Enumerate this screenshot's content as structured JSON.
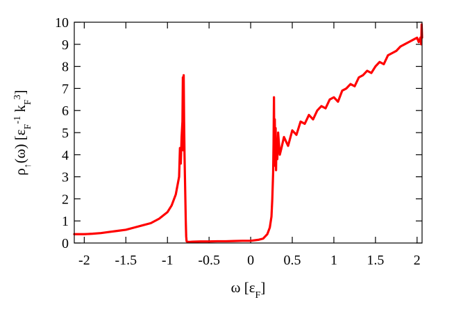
{
  "chart_data": {
    "type": "line",
    "xlabel": "ω [ε_F]",
    "ylabel": "ρ↑(ω) [ε_F^-1 k_F^3]",
    "xlim": [
      -2.12,
      2.06
    ],
    "ylim": [
      0,
      10
    ],
    "x_ticks": [
      -2,
      -1.5,
      -1,
      -0.5,
      0,
      0.5,
      1,
      1.5,
      2
    ],
    "x_tick_labels": [
      "-2",
      "-1.5",
      "-1",
      "-0.5",
      "0",
      "0.5",
      "1",
      "1.5",
      "2"
    ],
    "y_ticks": [
      0,
      1,
      2,
      3,
      4,
      5,
      6,
      7,
      8,
      9,
      10
    ],
    "y_tick_labels": [
      "0",
      "1",
      "2",
      "3",
      "4",
      "5",
      "6",
      "7",
      "8",
      "9",
      "10"
    ],
    "grid": false,
    "series": [
      {
        "color": "#ff0000",
        "x": [
          -2.12,
          -2.0,
          -1.9,
          -1.8,
          -1.7,
          -1.6,
          -1.5,
          -1.4,
          -1.3,
          -1.2,
          -1.1,
          -1.0,
          -0.95,
          -0.9,
          -0.88,
          -0.86,
          -0.85,
          -0.84,
          -0.83,
          -0.82,
          -0.815,
          -0.81,
          -0.805,
          -0.8,
          -0.795,
          -0.79,
          -0.785,
          -0.78,
          -0.775,
          -0.77,
          -0.76,
          -0.74,
          -0.7,
          -0.6,
          -0.5,
          -0.4,
          -0.3,
          -0.2,
          -0.1,
          0.0,
          0.1,
          0.15,
          0.2,
          0.23,
          0.25,
          0.26,
          0.27,
          0.275,
          0.28,
          0.285,
          0.29,
          0.295,
          0.3,
          0.305,
          0.31,
          0.32,
          0.33,
          0.35,
          0.37,
          0.4,
          0.45,
          0.5,
          0.55,
          0.6,
          0.65,
          0.7,
          0.75,
          0.8,
          0.85,
          0.9,
          0.95,
          1.0,
          1.05,
          1.1,
          1.15,
          1.2,
          1.25,
          1.3,
          1.35,
          1.4,
          1.45,
          1.5,
          1.55,
          1.6,
          1.65,
          1.7,
          1.75,
          1.8,
          1.85,
          1.9,
          1.95,
          2.0,
          2.02,
          2.04,
          2.05,
          2.055,
          2.06
        ],
        "y": [
          0.4,
          0.4,
          0.42,
          0.45,
          0.5,
          0.55,
          0.6,
          0.7,
          0.8,
          0.9,
          1.1,
          1.4,
          1.7,
          2.2,
          2.6,
          3.0,
          4.3,
          3.6,
          4.8,
          5.5,
          7.5,
          4.2,
          7.6,
          5.5,
          4.0,
          3.0,
          2.0,
          1.0,
          0.3,
          0.08,
          0.05,
          0.05,
          0.06,
          0.07,
          0.07,
          0.08,
          0.08,
          0.09,
          0.1,
          0.1,
          0.15,
          0.2,
          0.4,
          0.7,
          1.2,
          2.0,
          3.2,
          4.5,
          6.6,
          3.5,
          5.6,
          4.0,
          5.2,
          3.3,
          4.6,
          3.8,
          5.0,
          4.0,
          4.3,
          4.8,
          4.4,
          5.1,
          4.9,
          5.5,
          5.4,
          5.8,
          5.6,
          6.0,
          6.2,
          6.1,
          6.5,
          6.6,
          6.4,
          6.9,
          7.0,
          7.2,
          7.1,
          7.5,
          7.6,
          7.8,
          7.7,
          8.0,
          8.2,
          8.1,
          8.5,
          8.6,
          8.7,
          8.9,
          9.0,
          9.1,
          9.2,
          9.3,
          9.1,
          9.3,
          9.0,
          9.9,
          9.3
        ]
      }
    ]
  }
}
